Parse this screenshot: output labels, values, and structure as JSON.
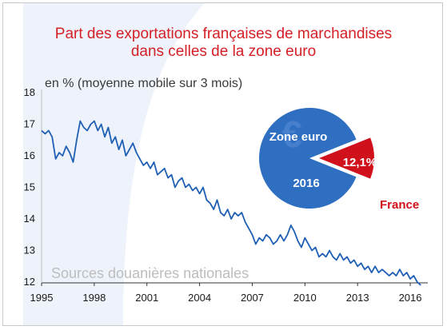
{
  "title_line1": "Part des exportations françaises de marchandises",
  "title_line2": "dans celles de la zone euro",
  "unit_label": "en % (moyenne mobile sur 3 mois)",
  "source": "Sources douanières nationales",
  "colors": {
    "title": "#d42027",
    "line": "#1f5fb4",
    "pie_blue": "#2f6fc2",
    "pie_red": "#d0111b"
  },
  "chart_data": {
    "type": "line",
    "title": "Part des exportations françaises de marchandises dans celles de la zone euro",
    "ylabel": "en % (moyenne mobile sur 3 mois)",
    "xlim": [
      1995,
      2017
    ],
    "ylim": [
      12,
      18
    ],
    "x_ticks": [
      "1995",
      "1998",
      "2001",
      "2004",
      "2007",
      "2010",
      "2013",
      "2016"
    ],
    "y_ticks": [
      "12",
      "13",
      "14",
      "15",
      "16",
      "17",
      "18"
    ],
    "grid": false,
    "series": [
      {
        "x": [
          1995.0,
          1995.2,
          1995.4,
          1995.6,
          1995.8,
          1996.0,
          1996.2,
          1996.4,
          1996.6,
          1996.8,
          1997.0,
          1997.2,
          1997.4,
          1997.6,
          1997.8,
          1998.0,
          1998.2,
          1998.4,
          1998.6,
          1998.8,
          1999.0,
          1999.2,
          1999.4,
          1999.6,
          1999.8,
          2000.0,
          2000.2,
          2000.4,
          2000.6,
          2000.8,
          2001.0,
          2001.2,
          2001.4,
          2001.6,
          2001.8,
          2002.0,
          2002.2,
          2002.4,
          2002.6,
          2002.8,
          2003.0,
          2003.2,
          2003.4,
          2003.6,
          2003.8,
          2004.0,
          2004.2,
          2004.4,
          2004.6,
          2004.8,
          2005.0,
          2005.2,
          2005.4,
          2005.6,
          2005.8,
          2006.0,
          2006.2,
          2006.4,
          2006.6,
          2006.8,
          2007.0,
          2007.2,
          2007.4,
          2007.6,
          2007.8,
          2008.0,
          2008.2,
          2008.4,
          2008.6,
          2008.8,
          2009.0,
          2009.2,
          2009.4,
          2009.6,
          2009.8,
          2010.0,
          2010.2,
          2010.4,
          2010.6,
          2010.8,
          2011.0,
          2011.2,
          2011.4,
          2011.6,
          2011.8,
          2012.0,
          2012.2,
          2012.4,
          2012.6,
          2012.8,
          2013.0,
          2013.2,
          2013.4,
          2013.6,
          2013.8,
          2014.0,
          2014.2,
          2014.4,
          2014.6,
          2014.8,
          2015.0,
          2015.2,
          2015.4,
          2015.6,
          2015.8,
          2016.0,
          2016.2,
          2016.4,
          2016.6
        ],
        "y": [
          16.8,
          16.7,
          16.8,
          16.6,
          15.9,
          16.1,
          16.0,
          16.3,
          16.1,
          15.8,
          16.5,
          17.1,
          16.9,
          16.8,
          17.0,
          17.1,
          16.8,
          17.0,
          16.6,
          16.9,
          16.4,
          16.6,
          16.2,
          16.5,
          16.0,
          16.2,
          16.4,
          16.1,
          15.9,
          15.7,
          15.8,
          15.6,
          15.8,
          15.4,
          15.5,
          15.6,
          15.3,
          15.4,
          15.0,
          15.2,
          15.3,
          15.0,
          15.1,
          14.9,
          15.0,
          14.8,
          15.0,
          14.6,
          14.5,
          14.3,
          14.6,
          14.2,
          14.1,
          14.3,
          14.0,
          14.2,
          14.1,
          14.2,
          13.9,
          13.7,
          13.5,
          13.2,
          13.4,
          13.3,
          13.5,
          13.4,
          13.2,
          13.3,
          13.5,
          13.3,
          13.5,
          13.8,
          13.6,
          13.3,
          13.1,
          13.4,
          13.2,
          13.0,
          13.1,
          12.8,
          12.9,
          12.8,
          13.0,
          12.8,
          12.7,
          12.9,
          12.7,
          12.8,
          12.6,
          12.7,
          12.5,
          12.6,
          12.4,
          12.5,
          12.3,
          12.5,
          12.3,
          12.4,
          12.3,
          12.2,
          12.3,
          12.2,
          12.4,
          12.2,
          12.3,
          12.1,
          12.2,
          12.0,
          11.9
        ]
      }
    ],
    "pie": {
      "slices": [
        {
          "label": "Zone euro",
          "value": 87.9
        },
        {
          "label": "France",
          "value": 12.1,
          "data_label": "12,1%"
        }
      ],
      "year_label": "2016"
    }
  }
}
